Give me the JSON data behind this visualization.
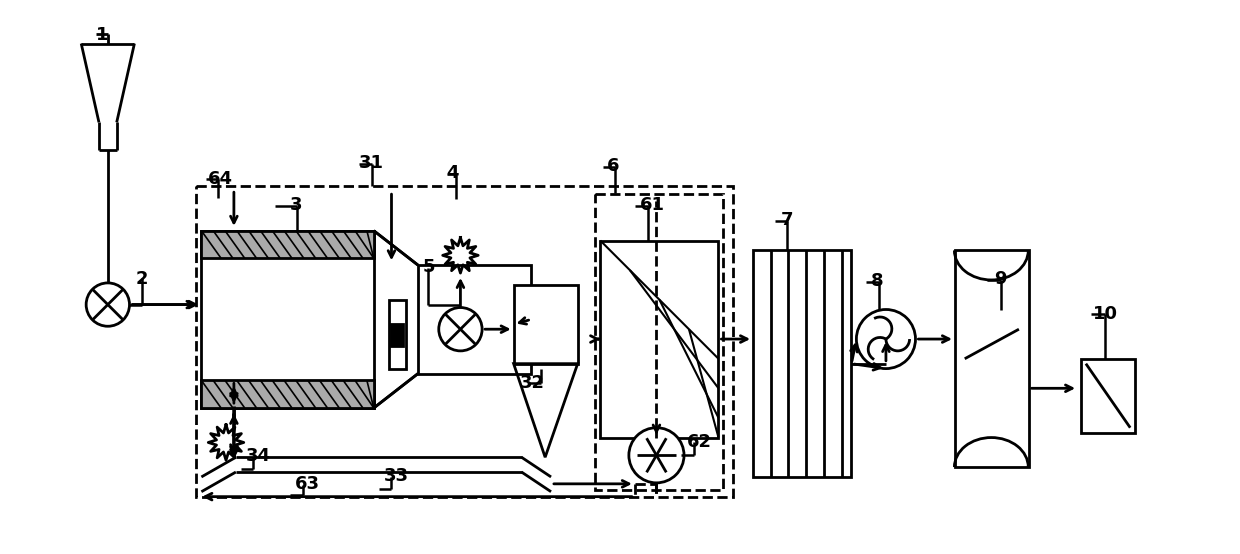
{
  "bg_color": "#ffffff",
  "line_color": "#000000",
  "figsize": [
    12.4,
    5.54
  ],
  "dpi": 100
}
